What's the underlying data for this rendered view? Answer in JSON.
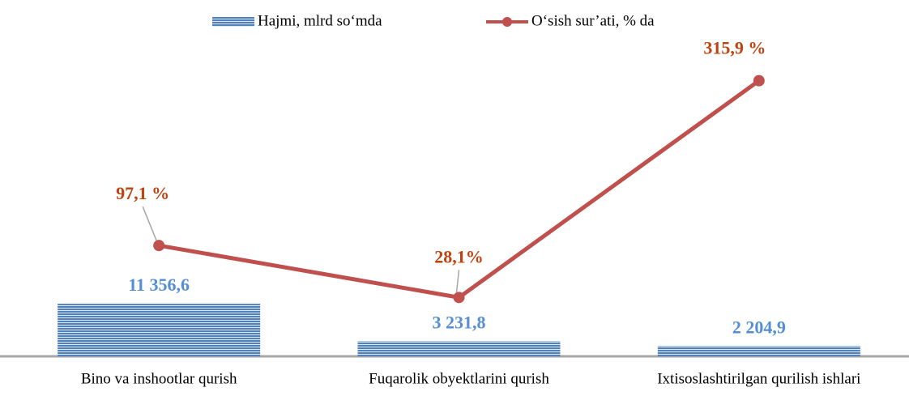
{
  "chart_data": {
    "type": "bar_line",
    "categories": [
      "Bino va inshootlar qurish",
      "Fuqarolik  obyektlarini qurish",
      "Ixtisoslashtirilgan qurilish ishlari"
    ],
    "series": [
      {
        "name": "Hajmi, mlrd so‘mda",
        "type": "bar",
        "color": "#4f81bd",
        "label_color": "#558ed5",
        "values": [
          11356.6,
          3231.8,
          2204.9
        ],
        "value_labels": [
          "11 356,6",
          "3 231,8",
          "2 204,9"
        ]
      },
      {
        "name": "O‘sish sur’ati, % da",
        "type": "line",
        "axis": "y2",
        "color": "#c0504d",
        "label_color": "#c0420f",
        "values": [
          97.1,
          28.1,
          315.9
        ],
        "value_labels": [
          "97,1 %",
          "28,1%",
          "315,9 %"
        ]
      }
    ],
    "ylim": [
      0,
      70000
    ],
    "y2lim": [
      -50,
      380
    ],
    "legend": "top"
  }
}
